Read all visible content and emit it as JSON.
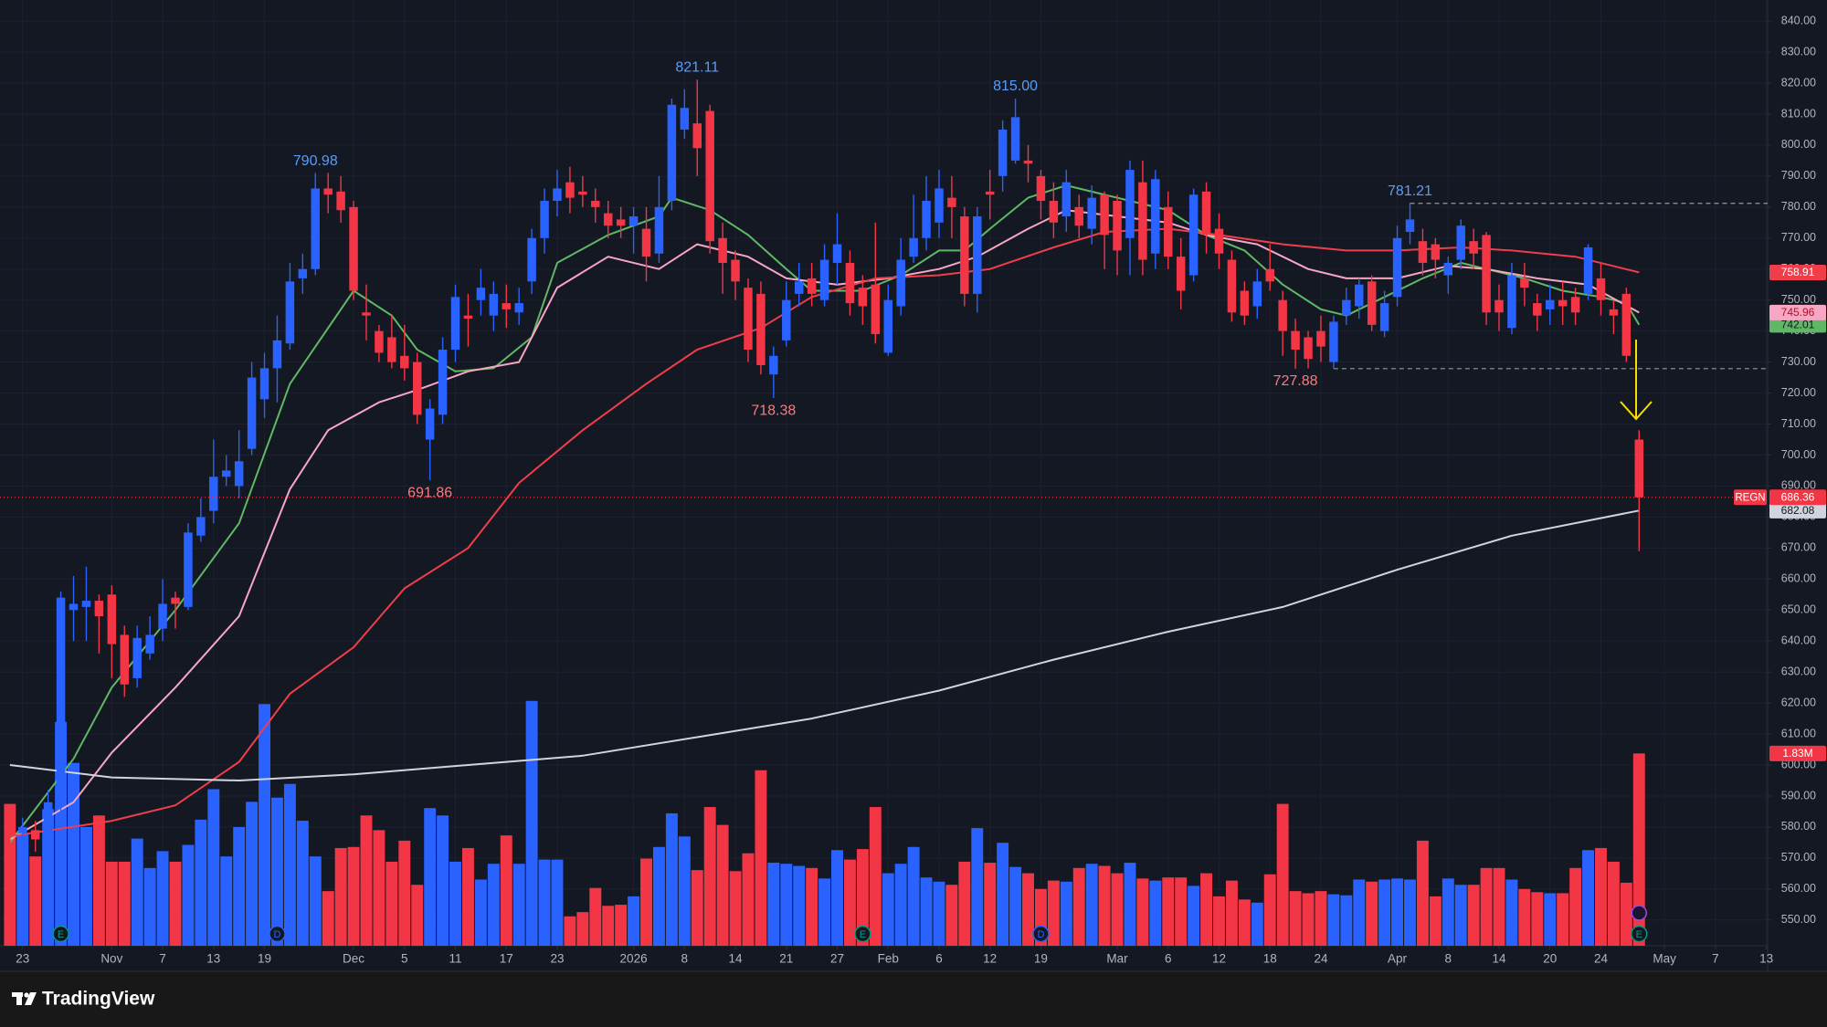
{
  "chart_data": {
    "type": "candlestick",
    "symbol": "REGN",
    "up_color": "#2962ff",
    "down_color": "#f23645",
    "grid": true,
    "xlim": [
      -0.78,
      138.1
    ],
    "ylim": [
      541.7,
      846.8
    ],
    "volume_lim": [
      0,
      9000000
    ],
    "xticks": [
      {
        "value": 1,
        "label": "23"
      },
      {
        "value": 8,
        "label": "Nov"
      },
      {
        "value": 12,
        "label": "7"
      },
      {
        "value": 16,
        "label": "13"
      },
      {
        "value": 20,
        "label": "19"
      },
      {
        "value": 27,
        "label": "Dec"
      },
      {
        "value": 31,
        "label": "5"
      },
      {
        "value": 35,
        "label": "11"
      },
      {
        "value": 39,
        "label": "17"
      },
      {
        "value": 43,
        "label": "23"
      },
      {
        "value": 49,
        "label": "2026"
      },
      {
        "value": 53,
        "label": "8"
      },
      {
        "value": 57,
        "label": "14"
      },
      {
        "value": 61,
        "label": "21"
      },
      {
        "value": 65,
        "label": "27"
      },
      {
        "value": 69,
        "label": "Feb"
      },
      {
        "value": 73,
        "label": "6"
      },
      {
        "value": 77,
        "label": "12"
      },
      {
        "value": 81,
        "label": "19"
      },
      {
        "value": 87,
        "label": "Mar"
      },
      {
        "value": 91,
        "label": "6"
      },
      {
        "value": 95,
        "label": "12"
      },
      {
        "value": 99,
        "label": "18"
      },
      {
        "value": 103,
        "label": "24"
      },
      {
        "value": 109,
        "label": "Apr"
      },
      {
        "value": 113,
        "label": "8"
      },
      {
        "value": 117,
        "label": "14"
      },
      {
        "value": 121,
        "label": "20"
      },
      {
        "value": 125,
        "label": "24"
      },
      {
        "value": 130,
        "label": "May"
      },
      {
        "value": 134,
        "label": "7"
      },
      {
        "value": 138,
        "label": "13"
      }
    ],
    "yticks": [
      {
        "value": 550,
        "label": "550.00"
      },
      {
        "value": 560,
        "label": "560.00"
      },
      {
        "value": 570,
        "label": "570.00"
      },
      {
        "value": 580,
        "label": "580.00"
      },
      {
        "value": 590,
        "label": "590.00"
      },
      {
        "value": 600,
        "label": "600.00"
      },
      {
        "value": 610,
        "label": "610.00"
      },
      {
        "value": 620,
        "label": "620.00"
      },
      {
        "value": 630,
        "label": "630.00"
      },
      {
        "value": 640,
        "label": "640.00"
      },
      {
        "value": 650,
        "label": "650.00"
      },
      {
        "value": 660,
        "label": "660.00"
      },
      {
        "value": 670,
        "label": "670.00"
      },
      {
        "value": 680,
        "label": "680.00"
      },
      {
        "value": 690,
        "label": "690.00"
      },
      {
        "value": 700,
        "label": "700.00"
      },
      {
        "value": 710,
        "label": "710.00"
      },
      {
        "value": 720,
        "label": "720.00"
      },
      {
        "value": 730,
        "label": "730.00"
      },
      {
        "value": 740,
        "label": "740.00"
      },
      {
        "value": 750,
        "label": "750.00"
      },
      {
        "value": 760,
        "label": "760.00"
      },
      {
        "value": 770,
        "label": "770.00"
      },
      {
        "value": 780,
        "label": "780.00"
      },
      {
        "value": 790,
        "label": "790.00"
      },
      {
        "value": 800,
        "label": "800.00"
      },
      {
        "value": 810,
        "label": "810.00"
      },
      {
        "value": 820,
        "label": "820.00"
      },
      {
        "value": 830,
        "label": "830.00"
      },
      {
        "value": 840,
        "label": "840.00"
      }
    ],
    "open": [
      580,
      578,
      579,
      577,
      588,
      650,
      651,
      653,
      655,
      642,
      628,
      636,
      644,
      654,
      651,
      674,
      682,
      693,
      690,
      702,
      718,
      728,
      736,
      757,
      760,
      786,
      785,
      780,
      746,
      740,
      738,
      732,
      730,
      705,
      713,
      734,
      745,
      750,
      745,
      749,
      746,
      756,
      770,
      782,
      788,
      785,
      782,
      778,
      776,
      774,
      773,
      765,
      782,
      805,
      807,
      811,
      770,
      763,
      754,
      752,
      726,
      737,
      752,
      757,
      750,
      762,
      762,
      754,
      755,
      733,
      748,
      764,
      770,
      775,
      783,
      777,
      752,
      785,
      790,
      795,
      795,
      790,
      782,
      777,
      780,
      773,
      784,
      782,
      770,
      788,
      765,
      780,
      764,
      758,
      785,
      773,
      763,
      753,
      748,
      760,
      750,
      740,
      738,
      740,
      730,
      745,
      748,
      756,
      740,
      751,
      772,
      769,
      768,
      758,
      763,
      769,
      771,
      750,
      741,
      757,
      749,
      747,
      750,
      751,
      752,
      757,
      747,
      752,
      705
    ],
    "high": [
      585,
      583,
      582,
      592,
      656,
      661,
      664,
      655,
      658,
      645,
      645,
      648,
      660,
      656,
      678,
      686,
      705,
      700,
      708,
      730,
      733,
      745,
      762,
      765,
      790.98,
      791,
      790,
      782,
      755,
      742,
      745,
      742,
      733,
      718,
      738,
      755,
      752,
      760,
      756,
      755,
      754,
      773,
      786,
      792,
      793,
      790,
      786,
      782,
      780,
      780,
      780,
      790,
      815,
      818,
      821.11,
      813,
      775,
      766,
      757,
      756,
      735,
      756,
      762,
      762,
      768,
      778,
      766,
      758,
      775,
      755,
      770,
      784,
      790,
      792,
      790,
      780,
      780,
      792,
      808,
      815,
      800,
      792,
      788,
      792,
      784,
      787,
      785,
      784,
      795,
      795,
      792,
      785,
      770,
      786,
      788,
      778,
      766,
      756,
      760,
      768,
      753,
      744,
      740,
      745,
      745,
      754,
      757,
      758,
      753,
      774,
      781.21,
      773,
      770,
      764,
      776,
      773,
      772,
      755,
      762,
      762,
      752,
      755,
      756,
      754,
      768,
      762,
      750,
      754,
      708
    ],
    "low": [
      575,
      574,
      572,
      574,
      583,
      640,
      640,
      636,
      628,
      622,
      625,
      634,
      640,
      644,
      650,
      672,
      678,
      690,
      686,
      700,
      712,
      717,
      734,
      752,
      758,
      778,
      775,
      750,
      737,
      730,
      728,
      724,
      710,
      691.86,
      710,
      730,
      735,
      745,
      740,
      741,
      742,
      752,
      765,
      777,
      778,
      780,
      775,
      770,
      770,
      765,
      756,
      762,
      779,
      802,
      790,
      765,
      752,
      750,
      730,
      726,
      718.38,
      735,
      748,
      748,
      748,
      755,
      745,
      742,
      736,
      732,
      745,
      762,
      766,
      770,
      770,
      748,
      746,
      776,
      785,
      794,
      788,
      776,
      770,
      772,
      770,
      768,
      760,
      758,
      758,
      758,
      760,
      760,
      747,
      756,
      765,
      760,
      743,
      742,
      744,
      753,
      732,
      727.88,
      728,
      730,
      728,
      742,
      744,
      740,
      738,
      748,
      768,
      758,
      757,
      752,
      760,
      760,
      742,
      740,
      739,
      748,
      740,
      742,
      742,
      742,
      750,
      745,
      739,
      730,
      669
    ],
    "close": [
      578,
      580,
      576,
      588,
      654,
      652,
      653,
      648,
      639,
      626,
      641,
      642,
      652,
      652,
      675,
      680,
      693,
      695,
      698,
      725,
      728,
      737,
      756,
      760,
      786,
      784,
      779,
      753,
      745,
      733,
      730,
      728,
      713,
      715,
      734,
      751,
      744,
      754,
      752,
      747,
      749,
      770,
      782,
      786,
      783,
      784,
      780,
      774,
      774,
      777,
      764,
      780,
      813,
      812,
      799,
      769,
      762,
      756,
      734,
      729,
      732,
      750,
      756,
      752,
      763,
      768,
      749,
      748,
      739,
      750,
      763,
      770,
      782,
      786,
      780,
      752,
      777,
      784,
      805,
      809,
      794,
      782,
      775,
      788,
      774,
      783,
      771,
      766,
      792,
      763,
      789,
      764,
      753,
      784,
      771,
      765,
      746,
      745,
      756,
      756,
      740,
      734,
      731,
      735,
      743,
      750,
      755,
      742,
      749,
      770,
      776,
      762,
      763,
      762,
      774,
      765,
      746,
      746,
      758,
      754,
      745,
      750,
      748,
      746,
      767,
      750,
      745,
      732,
      686.36
    ],
    "volume": [
      1350000,
      1070000,
      850000,
      1300000,
      2130000,
      1740000,
      1130000,
      1240000,
      800000,
      800000,
      1020000,
      740000,
      900000,
      800000,
      960000,
      1200000,
      1490000,
      850000,
      1130000,
      1370000,
      2300000,
      1410000,
      1540000,
      1190000,
      850000,
      520000,
      930000,
      940000,
      1240000,
      1100000,
      800000,
      1000000,
      580000,
      1310000,
      1240000,
      800000,
      930000,
      630000,
      780000,
      1050000,
      780000,
      2330000,
      820000,
      820000,
      280000,
      320000,
      550000,
      380000,
      390000,
      470000,
      830000,
      940000,
      1260000,
      1040000,
      720000,
      1320000,
      1150000,
      710000,
      880000,
      1670000,
      790000,
      780000,
      760000,
      740000,
      640000,
      910000,
      820000,
      920000,
      1320000,
      690000,
      780000,
      940000,
      650000,
      610000,
      580000,
      800000,
      1120000,
      790000,
      980000,
      750000,
      690000,
      540000,
      620000,
      610000,
      740000,
      780000,
      760000,
      690000,
      790000,
      640000,
      620000,
      650000,
      650000,
      570000,
      690000,
      470000,
      620000,
      440000,
      410000,
      680000,
      1350000,
      520000,
      500000,
      520000,
      490000,
      480000,
      630000,
      610000,
      630000,
      640000,
      630000,
      1000000,
      470000,
      640000,
      580000,
      580000,
      740000,
      740000,
      630000,
      540000,
      510000,
      500000,
      500000,
      740000,
      910000,
      930000,
      800000,
      600000,
      1830000
    ],
    "last_volume_label": "1.83M",
    "moving_averages": [
      {
        "color": "#5fb864",
        "x": [
          0,
          5,
          8,
          13,
          18,
          22,
          27,
          30,
          32,
          35,
          38,
          41,
          43,
          47,
          51,
          52,
          55,
          58,
          61,
          63,
          67,
          70,
          73,
          75,
          77,
          80,
          83,
          87,
          91,
          94,
          97,
          100,
          103,
          105,
          108,
          111,
          114,
          116,
          119,
          122,
          125,
          127,
          128
        ],
        "values": [
          575,
          602,
          625,
          650,
          678,
          723,
          753,
          745,
          734,
          727,
          728,
          738,
          762,
          771,
          777,
          783,
          779,
          771,
          760,
          753,
          753,
          758,
          766,
          766,
          773,
          783,
          787,
          783,
          779,
          771,
          766,
          755,
          747,
          745,
          751,
          757,
          762,
          760,
          757,
          753,
          751,
          749,
          742.01
        ]
      },
      {
        "color": "#f7a6c3",
        "x": [
          0,
          5,
          8,
          13,
          18,
          22,
          25,
          29,
          32,
          36,
          40,
          43,
          47,
          51,
          54,
          58,
          61,
          65,
          69,
          73,
          76,
          80,
          83,
          87,
          91,
          94,
          98,
          102,
          105,
          109,
          113,
          116,
          120,
          124,
          128
        ],
        "values": [
          576,
          588,
          604,
          625,
          648,
          689,
          708,
          717,
          721,
          727,
          730,
          754,
          764,
          760,
          768,
          764,
          757,
          755,
          757,
          760,
          764,
          773,
          779,
          777,
          775,
          771,
          768,
          760,
          757,
          757,
          761,
          760,
          757,
          755,
          745.96
        ]
      },
      {
        "color": "#ef3e4a",
        "x": [
          0,
          8,
          13,
          18,
          22,
          27,
          31,
          36,
          40,
          45,
          50,
          54,
          59,
          63,
          68,
          73,
          77,
          82,
          86,
          91,
          95,
          100,
          105,
          109,
          114,
          118,
          123,
          128
        ],
        "values": [
          577,
          582,
          587,
          601,
          623,
          638,
          657,
          670,
          691,
          708,
          723,
          734,
          741,
          751,
          757,
          758,
          760,
          767,
          772,
          773,
          771,
          768,
          766,
          766,
          767,
          766,
          764,
          758.91
        ]
      },
      {
        "color": "#d1d4dc",
        "x": [
          0,
          8,
          18,
          27,
          36,
          45,
          54,
          63,
          73,
          82,
          91,
          100,
          109,
          118,
          128
        ],
        "values": [
          600,
          596,
          595,
          597,
          600,
          603,
          609,
          615,
          624,
          634,
          643,
          651,
          663,
          674,
          682.08
        ]
      }
    ],
    "annotations": [
      {
        "x": 24,
        "value": 790.98,
        "label": "790.98",
        "color": "#5b9cf6",
        "side": "above"
      },
      {
        "x": 54,
        "value": 821.11,
        "label": "821.11",
        "color": "#5b9cf6",
        "side": "above"
      },
      {
        "x": 79,
        "value": 815,
        "label": "815.00",
        "color": "#5b9cf6",
        "side": "above"
      },
      {
        "x": 110,
        "value": 781.21,
        "label": "781.21",
        "color": "#5b9cf6",
        "side": "above"
      },
      {
        "x": 33,
        "value": 691.86,
        "label": "691.86",
        "color": "#f77c80",
        "side": "below"
      },
      {
        "x": 60,
        "value": 718.38,
        "label": "718.38",
        "color": "#f77c80",
        "side": "below"
      },
      {
        "x": 101,
        "value": 727.88,
        "label": "727.88",
        "color": "#f77c80",
        "side": "below"
      }
    ],
    "levels": [
      {
        "x": 110,
        "value": 781.21
      },
      {
        "x": 104,
        "value": 727.88
      }
    ],
    "events": [
      {
        "x": 4,
        "label": "E",
        "color": "#089981"
      },
      {
        "x": 21,
        "label": "D",
        "color": "#2962ff"
      },
      {
        "x": 67,
        "label": "E",
        "color": "#089981"
      },
      {
        "x": 81,
        "label": "D",
        "color": "#2962ff"
      },
      {
        "x": 128,
        "label": "E",
        "color": "#089981"
      }
    ]
  },
  "footer": {
    "brand": "TradingView"
  }
}
